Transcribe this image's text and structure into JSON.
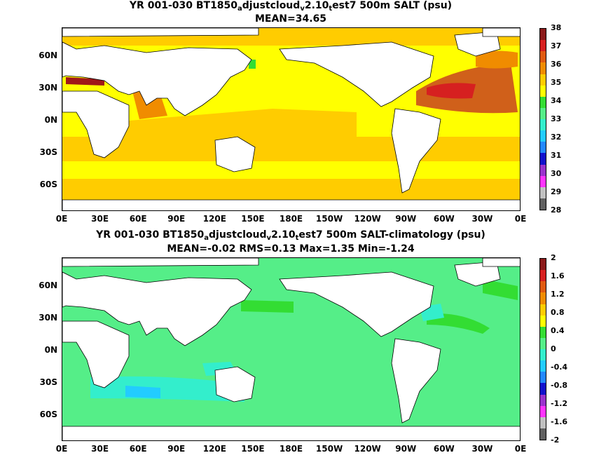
{
  "panels": [
    {
      "title_line1_parts": [
        "YR 001-030 BT1850",
        "a",
        "djustcloud",
        "v",
        "2.10",
        "t",
        "est7 500m SALT (psu)"
      ],
      "title_line2": "MEAN=34.65",
      "colorbar_labels": [
        "38",
        "37",
        "36",
        "35",
        "34",
        "33",
        "32",
        "31",
        "30",
        "29",
        "28"
      ],
      "colorbar_colors": [
        "#8b1a1a",
        "#d62020",
        "#e05a10",
        "#f08c00",
        "#ffcc00",
        "#ffff00",
        "#33dd33",
        "#55ee88",
        "#33eecc",
        "#22ccff",
        "#2288ff",
        "#1111cc",
        "#9933cc",
        "#ff33ff",
        "#c0c0c0",
        "#606060"
      ]
    },
    {
      "title_line1_parts": [
        "YR 001-030 BT1850",
        "a",
        "djustcloud",
        "v",
        "2.10",
        "t",
        "est7 500m SALT-climatology (psu)"
      ],
      "title_line2": "MEAN=-0.02   RMS=0.13   Max=1.35   Min=-1.24",
      "colorbar_labels": [
        "2",
        "1.6",
        "1.2",
        "0.8",
        "0.4",
        "0",
        "-0.4",
        "-0.8",
        "-1.2",
        "-1.6",
        "-2"
      ],
      "colorbar_colors": [
        "#8b1a1a",
        "#d62020",
        "#e05a10",
        "#f08c00",
        "#ffcc00",
        "#ffff00",
        "#33dd33",
        "#55ee88",
        "#33eecc",
        "#22ccff",
        "#2288ff",
        "#1111cc",
        "#9933cc",
        "#ff33ff",
        "#c0c0c0",
        "#606060"
      ]
    }
  ],
  "lat_labels": [
    "60N",
    "30N",
    "0N",
    "30S",
    "60S"
  ],
  "lon_labels": [
    "0E",
    "30E",
    "60E",
    "90E",
    "120E",
    "150E",
    "180E",
    "150W",
    "120W",
    "90W",
    "60W",
    "30W",
    "0E"
  ],
  "colors": {
    "land": "#ffffff",
    "salt_base": "#ffff00",
    "salt_south": "#ffcc00",
    "salt_high": "#f08c00",
    "salt_atl": "#d0601a",
    "salt_med": "#a01818",
    "anom_base": "#55ee88",
    "anom_pos": "#33dd33",
    "anom_neg": "#33eecc",
    "anom_neg2": "#22ccff"
  }
}
